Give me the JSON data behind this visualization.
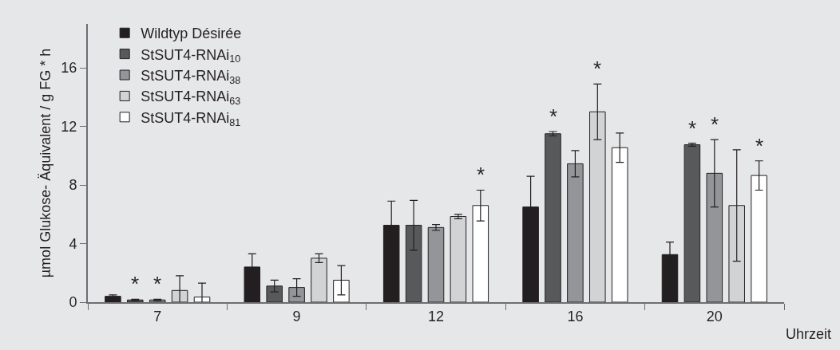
{
  "chart_data": {
    "type": "bar",
    "xlabel": "Uhrzeit",
    "ylabel": "µmol Glukose- Äquivalent / g FG * h",
    "categories": [
      "7",
      "9",
      "12",
      "16",
      "20"
    ],
    "series": [
      {
        "name": "Wildtyp Désirée",
        "color": "#231f20",
        "values": [
          0.4,
          2.4,
          5.25,
          6.5,
          3.25
        ],
        "errors": [
          0.1,
          0.9,
          1.65,
          2.1,
          0.85
        ]
      },
      {
        "name": "StSUT4-RNAi$_{10}$",
        "color": "#58595b",
        "values": [
          0.15,
          1.1,
          5.25,
          11.5,
          10.75
        ],
        "errors": [
          0.05,
          0.4,
          1.7,
          0.15,
          0.1
        ],
        "value_labels": [
          "*",
          null,
          null,
          "*",
          "*"
        ]
      },
      {
        "name": "StSUT4-RNAi$_{38}$",
        "color": "#939598",
        "values": [
          0.15,
          1.0,
          5.1,
          9.45,
          8.8
        ],
        "errors": [
          0.05,
          0.6,
          0.2,
          0.9,
          2.3
        ],
        "value_labels": [
          "*",
          null,
          null,
          null,
          "*"
        ]
      },
      {
        "name": "StSUT4-RNAi$_{63}$",
        "color": "#d1d3d4",
        "values": [
          0.8,
          3.0,
          5.85,
          13.0,
          6.6
        ],
        "errors": [
          1.0,
          0.3,
          0.15,
          1.9,
          3.8
        ],
        "value_labels": [
          null,
          null,
          null,
          "*",
          null
        ]
      },
      {
        "name": "StSUT4-RNAi$_{81}$",
        "color": "#ffffff",
        "values": [
          0.35,
          1.5,
          6.6,
          10.55,
          8.65
        ],
        "errors": [
          0.95,
          1.0,
          1.05,
          1.0,
          1.0
        ],
        "value_labels": [
          null,
          null,
          "*",
          null,
          "*"
        ]
      }
    ],
    "ylim": [
      0,
      19
    ],
    "yticks": [
      0,
      4,
      8,
      12,
      16
    ],
    "grid": false,
    "legend": "top left"
  }
}
